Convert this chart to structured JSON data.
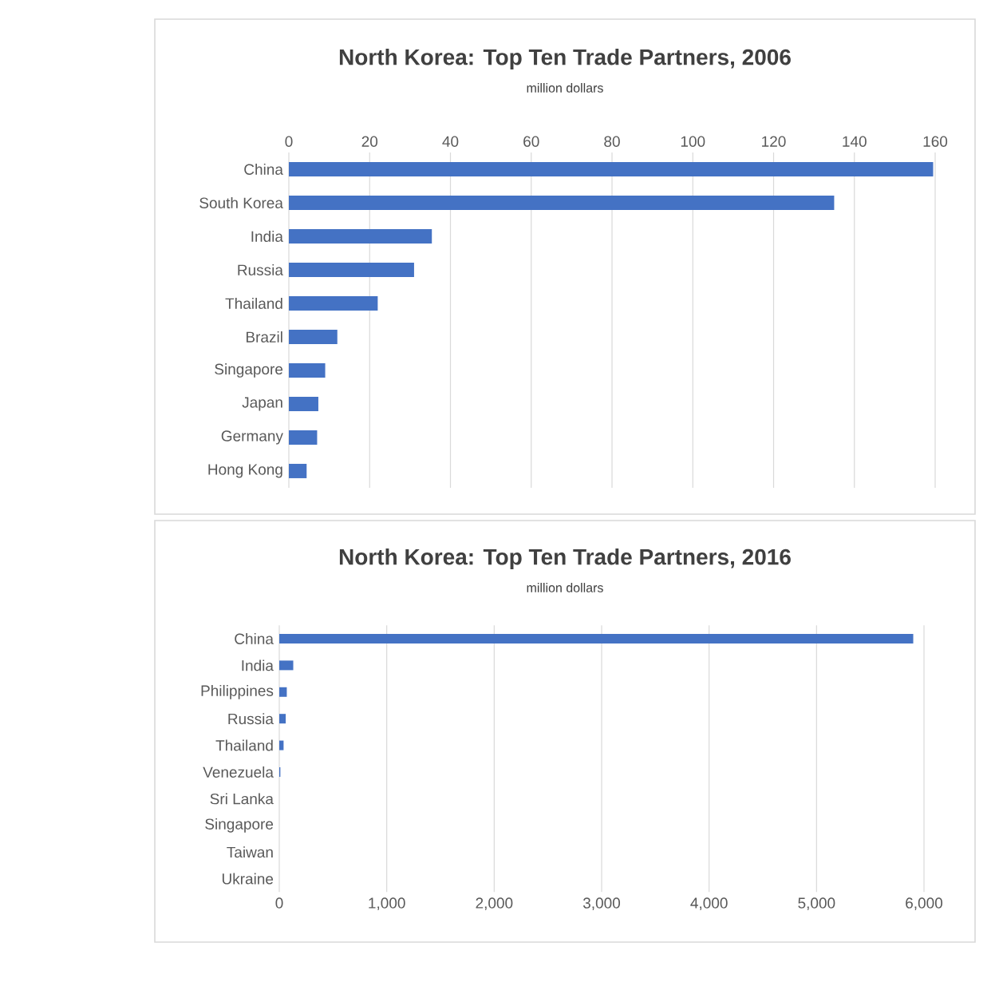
{
  "chart_data": [
    {
      "type": "bar",
      "orientation": "horizontal",
      "title": "North Korea: Top Ten Trade Partners, 2006",
      "subtitle": "million dollars",
      "categories": [
        "China",
        "South Korea",
        "India",
        "Russia",
        "Thailand",
        "Brazil",
        "Singapore",
        "Japan",
        "Germany",
        "Hong Kong"
      ],
      "values": [
        159.5,
        135,
        35.4,
        31,
        22,
        12,
        9,
        7.3,
        7,
        4.4
      ],
      "color": "#4472c4",
      "xlim": [
        0,
        160
      ],
      "xticks": [
        0,
        20,
        40,
        60,
        80,
        100,
        120,
        140,
        160
      ],
      "grid": "x"
    },
    {
      "type": "bar",
      "orientation": "horizontal",
      "title": "North Korea:  Top Ten Trade Partners, 2016",
      "subtitle": "million dollars",
      "categories": [
        "China",
        "India",
        "Philippines",
        "Russia",
        "Thailand",
        "Venezuela",
        "Sri Lanka",
        "Singapore",
        "Taiwan",
        "Ukraine"
      ],
      "values": [
        5900,
        130,
        70,
        60,
        40,
        10,
        null,
        null,
        null,
        null
      ],
      "color": "#4472c4",
      "xlim": [
        0,
        6000
      ],
      "xticks": [
        0,
        {
          "value": 1000,
          "label": "1,000"
        },
        {
          "value": 2000,
          "label": "2,000"
        },
        {
          "value": 3000,
          "label": "3,000"
        },
        {
          "value": 4000,
          "label": "4,000"
        },
        {
          "value": 5000,
          "label": "5,000"
        },
        {
          "value": 6000,
          "label": "6,000"
        }
      ],
      "grid": "x"
    }
  ]
}
